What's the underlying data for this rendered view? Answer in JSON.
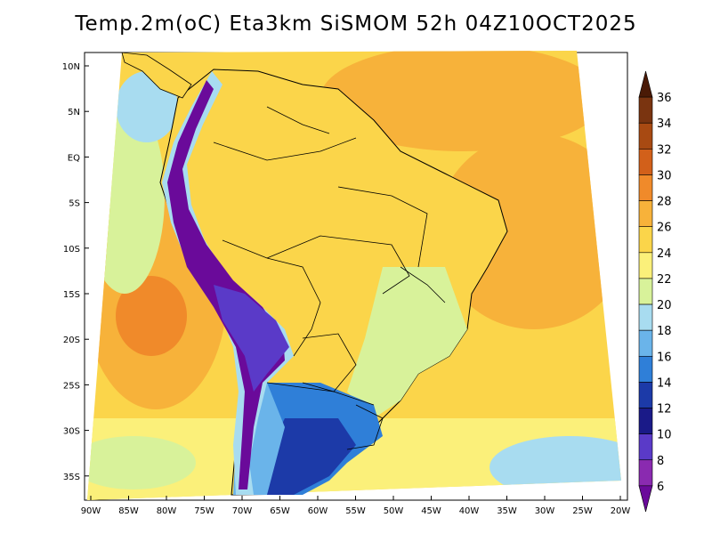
{
  "title": "Temp.2m(oC) Eta3km SiSMOM 52h 04Z10OCT2025",
  "lat_labels": [
    "10N",
    "5N",
    "EQ",
    "5S",
    "10S",
    "15S",
    "20S",
    "25S",
    "30S",
    "35S"
  ],
  "lon_labels": [
    "90W",
    "85W",
    "80W",
    "75W",
    "70W",
    "65W",
    "60W",
    "55W",
    "50W",
    "45W",
    "40W",
    "35W",
    "30W",
    "25W",
    "20W"
  ],
  "colorbar": {
    "labels": [
      "36",
      "34",
      "32",
      "30",
      "28",
      "26",
      "24",
      "22",
      "20",
      "18",
      "16",
      "14",
      "12",
      "10",
      "8",
      "6"
    ],
    "colors": [
      "#4a1a06",
      "#7a3410",
      "#a84a12",
      "#d2601a",
      "#f08a2a",
      "#f7b23a",
      "#fbd54a",
      "#fbf07a",
      "#d8f29a",
      "#a8dcf0",
      "#6ab4ea",
      "#2f7fd8",
      "#1c3aa8",
      "#1a1a88",
      "#5a3ac8",
      "#8a2ab0",
      "#6a0a9a"
    ]
  },
  "palette": {
    "ocean_warm": "#f7b23a",
    "ocean_mid": "#fbd54a",
    "ocean_cool": "#fbf07a",
    "ocean_cold": "#a8dcf0",
    "land_warm": "#fbd54a",
    "andes": "#6a0a9a"
  }
}
